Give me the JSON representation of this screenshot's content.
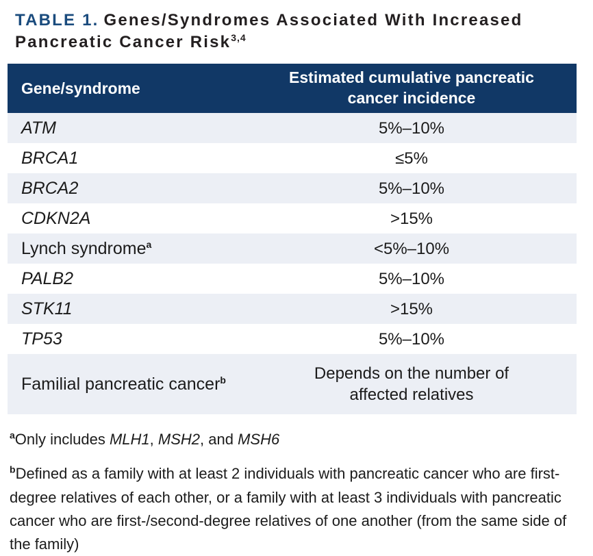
{
  "title": {
    "label": "TABLE 1.",
    "text": "Genes/Syndromes Associated With Increased Pancreatic Cancer Risk",
    "sup": "3,4"
  },
  "table": {
    "columns": [
      "Gene/syndrome",
      "Estimated cumulative pancreatic cancer incidence"
    ],
    "rows": [
      {
        "gene": "ATM",
        "italic": true,
        "sup": "",
        "value": "5%–10%"
      },
      {
        "gene": "BRCA1",
        "italic": true,
        "sup": "",
        "value": "≤5%"
      },
      {
        "gene": "BRCA2",
        "italic": true,
        "sup": "",
        "value": "5%–10%"
      },
      {
        "gene": "CDKN2A",
        "italic": true,
        "sup": "",
        "value": ">15%"
      },
      {
        "gene": "Lynch syndrome",
        "italic": false,
        "sup": "a",
        "value": "<5%–10%"
      },
      {
        "gene": "PALB2",
        "italic": true,
        "sup": "",
        "value": "5%–10%"
      },
      {
        "gene": "STK11",
        "italic": true,
        "sup": "",
        "value": ">15%"
      },
      {
        "gene": "TP53",
        "italic": true,
        "sup": "",
        "value": "5%–10%"
      },
      {
        "gene": "Familial pancreatic cancer",
        "italic": false,
        "sup": "b",
        "value": "Depends on the number of affected relatives",
        "tall": true
      }
    ]
  },
  "footnotes": [
    {
      "sup": "a",
      "parts": [
        {
          "t": "Only includes ",
          "i": false
        },
        {
          "t": "MLH1",
          "i": true
        },
        {
          "t": ", ",
          "i": false
        },
        {
          "t": "MSH2",
          "i": true
        },
        {
          "t": ", and ",
          "i": false
        },
        {
          "t": "MSH6",
          "i": true
        }
      ]
    },
    {
      "sup": "b",
      "parts": [
        {
          "t": "Defined as a family with at least 2 individuals with pancreatic cancer who are first-degree relatives of each other, or a family with at least 3 individuals with pancreatic cancer who are first-/second-degree relatives of one another (from the same side of the family)",
          "i": false
        }
      ]
    }
  ],
  "colors": {
    "header_background": "#113866",
    "row_stripe": "#eceff5",
    "title_accent": "#1a4b7d",
    "body_text": "#1b1b1b",
    "header_text": "#ffffff"
  }
}
